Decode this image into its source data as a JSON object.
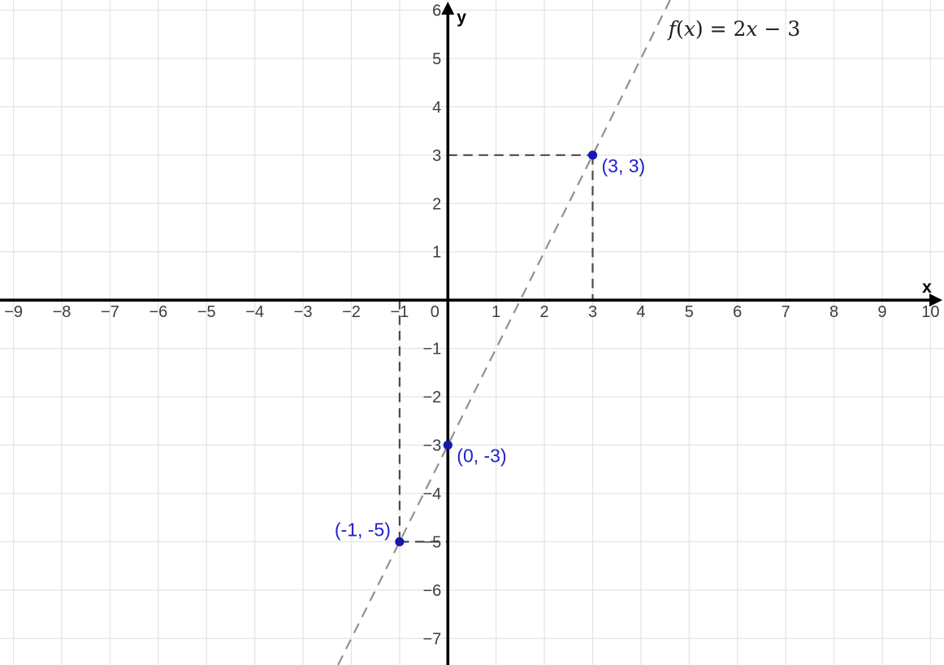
{
  "chart_data": {
    "type": "line",
    "title": "",
    "function": {
      "label": "f(x) = 2x − 3",
      "label_parts": [
        {
          "text": "f",
          "style": "italic"
        },
        {
          "text": "(",
          "style": "normal"
        },
        {
          "text": "x",
          "style": "italic"
        },
        {
          "text": ") = 2",
          "style": "normal"
        },
        {
          "text": "x",
          "style": "italic"
        },
        {
          "text": " − 3",
          "style": "normal"
        }
      ],
      "slope": 2,
      "intercept": -3,
      "label_anchor": {
        "x": 4.57,
        "y": 5.47
      }
    },
    "axes": {
      "x_label": "x",
      "y_label": "y",
      "xlim": [
        -9.28,
        10.28
      ],
      "ylim": [
        -7.55,
        6.21
      ],
      "grid": true,
      "x_ticks": [
        {
          "v": -9,
          "t": "−9"
        },
        {
          "v": -8,
          "t": "−8"
        },
        {
          "v": -7,
          "t": "−7"
        },
        {
          "v": -6,
          "t": "−6"
        },
        {
          "v": -5,
          "t": "−5"
        },
        {
          "v": -4,
          "t": "−4"
        },
        {
          "v": -3,
          "t": "−3"
        },
        {
          "v": -2,
          "t": "−2"
        },
        {
          "v": -1,
          "t": "−1"
        },
        {
          "v": 0,
          "t": "0"
        },
        {
          "v": 1,
          "t": "1"
        },
        {
          "v": 2,
          "t": "2"
        },
        {
          "v": 3,
          "t": "3"
        },
        {
          "v": 4,
          "t": "4"
        },
        {
          "v": 5,
          "t": "5"
        },
        {
          "v": 6,
          "t": "6"
        },
        {
          "v": 7,
          "t": "7"
        },
        {
          "v": 8,
          "t": "8"
        },
        {
          "v": 9,
          "t": "9"
        },
        {
          "v": 10,
          "t": "10"
        }
      ],
      "y_ticks": [
        {
          "v": 6,
          "t": "6"
        },
        {
          "v": 5,
          "t": "5"
        },
        {
          "v": 4,
          "t": "4"
        },
        {
          "v": 3,
          "t": "3"
        },
        {
          "v": 2,
          "t": "2"
        },
        {
          "v": 1,
          "t": "1"
        },
        {
          "v": -1,
          "t": "−1"
        },
        {
          "v": -2,
          "t": "−2"
        },
        {
          "v": -3,
          "t": "−3"
        },
        {
          "v": -4,
          "t": "−4"
        },
        {
          "v": -5,
          "t": "−5"
        },
        {
          "v": -6,
          "t": "−6"
        },
        {
          "v": -7,
          "t": "−7"
        }
      ]
    },
    "points": [
      {
        "x": 3,
        "y": 3,
        "label": "(3, 3)",
        "label_side": "right"
      },
      {
        "x": 0,
        "y": -3,
        "label": "(0, -3)",
        "label_side": "right"
      },
      {
        "x": -1,
        "y": -5,
        "label": "(-1, -5)",
        "label_side": "left"
      }
    ],
    "helper_segments": [
      {
        "from": [
          0,
          3
        ],
        "to": [
          3,
          3
        ]
      },
      {
        "from": [
          3,
          3
        ],
        "to": [
          3,
          0
        ]
      },
      {
        "from": [
          -1,
          0
        ],
        "to": [
          -1,
          -5
        ]
      },
      {
        "from": [
          -1,
          -5
        ],
        "to": [
          0,
          -5
        ]
      }
    ],
    "colors": {
      "background": "#ffffff",
      "axis": "#000000",
      "grid": "#e3e3e3",
      "function_line": "#909090",
      "helper_line": "#4a4a4a",
      "point_fill": "#1717b0",
      "point_label": "#2121cc",
      "tick_label": "#3d3d3d",
      "equation_label": "#1f1f1f"
    },
    "style_hints": {
      "function_dash": "13 9",
      "helper_dash": "11.5 7.5",
      "grid_width": 1.2,
      "axis_width": 3.6,
      "line_width": 2.2,
      "point_radius": 5.6
    }
  }
}
